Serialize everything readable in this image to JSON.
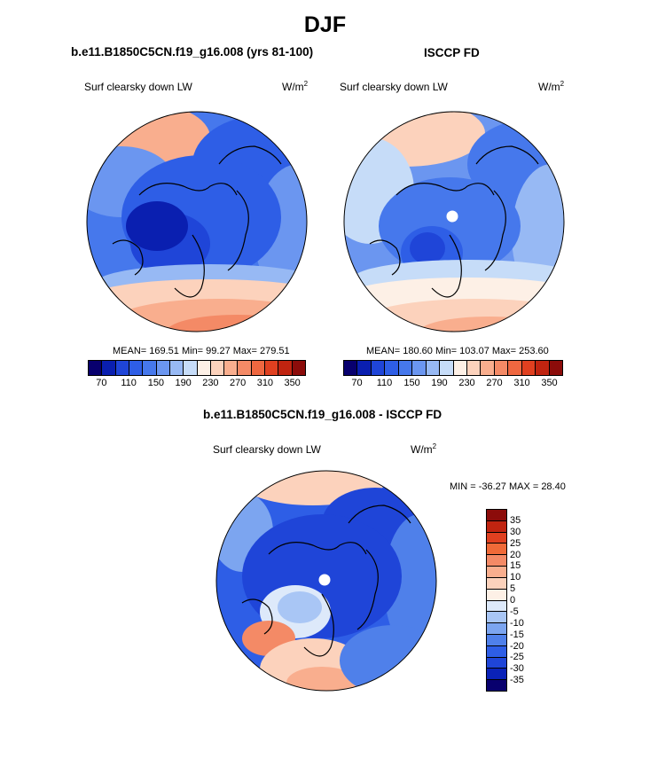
{
  "title": "DJF",
  "left_panel": {
    "title": "b.e11.B1850C5CN.f19_g16.008 (yrs 81-100)",
    "variable": "Surf clearsky down LW",
    "units_base": "W/m",
    "units_exp": "2",
    "stats": "MEAN= 169.51  Min=  99.27  Max= 279.51"
  },
  "right_panel": {
    "title": "ISCCP FD",
    "variable": "Surf clearsky down LW",
    "units_base": "W/m",
    "units_exp": "2",
    "stats": "MEAN= 180.60  Min= 103.07  Max= 253.60"
  },
  "diff_panel": {
    "title": "b.e11.B1850C5CN.f19_g16.008 - ISCCP FD",
    "variable": "Surf clearsky down LW",
    "units_base": "W/m",
    "units_exp": "2",
    "stats": "MIN = -36.27 MAX =  28.40"
  },
  "abs_colorbar": {
    "colors": [
      "#08006e",
      "#0a1fb0",
      "#1f45d8",
      "#2e5ee6",
      "#4678ec",
      "#6b96f0",
      "#97b9f4",
      "#c6dcf8",
      "#fdf0e6",
      "#fcd2bc",
      "#f9ae8e",
      "#f48a66",
      "#ef6740",
      "#e04020",
      "#c02410",
      "#8c0c0a"
    ],
    "tick_labels": [
      "70",
      "110",
      "150",
      "190",
      "230",
      "270",
      "310",
      "350"
    ]
  },
  "diff_colorbar": {
    "colors": [
      "#8c0c0a",
      "#c02410",
      "#e04020",
      "#f06a38",
      "#f48a66",
      "#f9ae8e",
      "#fcd2bc",
      "#fdf0e6",
      "#dde9fa",
      "#a9c6f5",
      "#7ca5f0",
      "#4f80ea",
      "#2e5ee6",
      "#1f45d8",
      "#0a22b8",
      "#08006e"
    ],
    "tick_labels": [
      "35",
      "30",
      "25",
      "20",
      "15",
      "10",
      "5",
      "0",
      "-5",
      "-10",
      "-15",
      "-20",
      "-25",
      "-30",
      "-35"
    ]
  }
}
